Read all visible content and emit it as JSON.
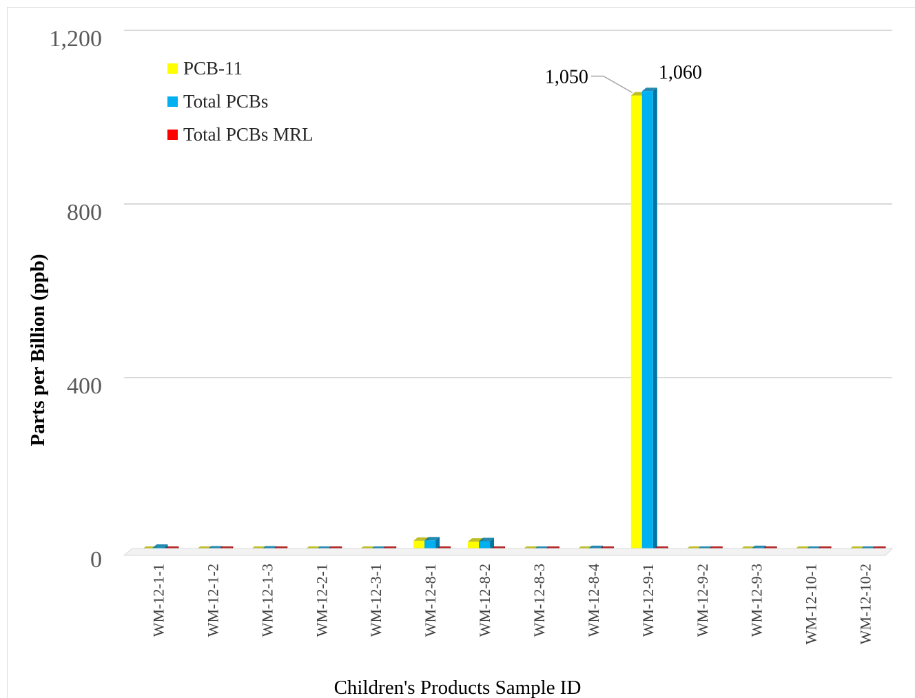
{
  "chart_data": {
    "type": "bar",
    "title": "",
    "xlabel": "Children's Products Sample ID",
    "ylabel": "Parts per Billion (ppb)",
    "ylim": [
      0,
      1200
    ],
    "yticks": [
      "0",
      "400",
      "800",
      "1,200"
    ],
    "ytick_values": [
      0,
      400,
      800,
      1200
    ],
    "grid": true,
    "legend_position": "top-left",
    "categories": [
      "WM-12-1-1",
      "WM-12-1-2",
      "WM-12-1-3",
      "WM-12-2-1",
      "WM-12-3-1",
      "WM-12-8-1",
      "WM-12-8-2",
      "WM-12-8-3",
      "WM-12-8-4",
      "WM-12-9-1",
      "WM-12-9-2",
      "WM-12-9-3",
      "WM-12-10-1",
      "WM-12-10-2"
    ],
    "series": [
      {
        "name": "PCB-11",
        "color": "#ffff00",
        "side_color": "#b3b300",
        "values": [
          3,
          1,
          0.5,
          0.5,
          0.5,
          24,
          22,
          0.5,
          2,
          1050,
          0.5,
          3,
          0.5,
          0.5
        ]
      },
      {
        "name": "Total PCBs",
        "color": "#00b0f0",
        "side_color": "#0075a3",
        "values": [
          8,
          4,
          4,
          2,
          1,
          25,
          23,
          1,
          5,
          1060,
          2,
          5,
          1,
          1
        ]
      },
      {
        "name": "Total PCBs MRL",
        "color": "#ff0000",
        "side_color": "#a80000",
        "values": [
          1,
          1,
          1,
          1,
          1,
          1,
          1,
          1,
          1,
          1,
          1,
          1,
          1,
          1
        ]
      }
    ],
    "data_labels": [
      {
        "series": 0,
        "category": "WM-12-9-1",
        "text": "1,050"
      },
      {
        "series": 1,
        "category": "WM-12-9-1",
        "text": "1,060"
      }
    ]
  }
}
